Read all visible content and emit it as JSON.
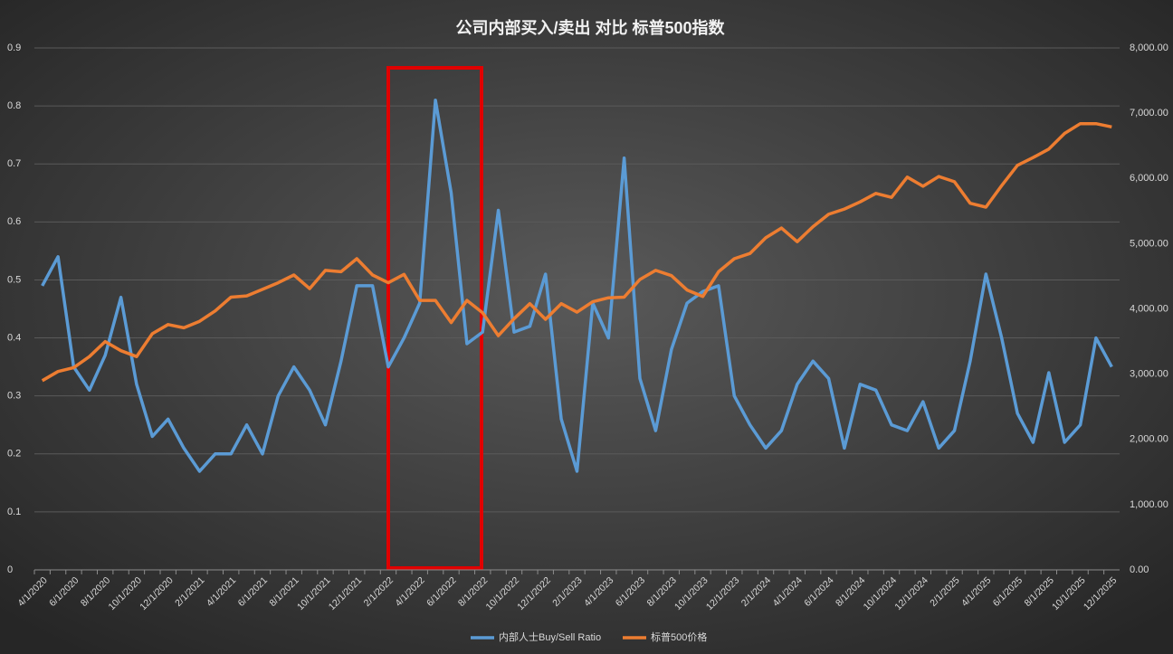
{
  "chart_data": {
    "type": "line",
    "title": "公司内部买入/卖出 对比 标普500指数",
    "categories": [
      "4/1/2020",
      null,
      "6/1/2020",
      null,
      "8/1/2020",
      null,
      "10/1/2020",
      null,
      "12/1/2020",
      null,
      "2/1/2021",
      null,
      "4/1/2021",
      null,
      "6/1/2021",
      null,
      "8/1/2021",
      null,
      "10/1/2021",
      null,
      "12/1/2021",
      null,
      "2/1/2022",
      null,
      "4/1/2022",
      null,
      "6/1/2022",
      null,
      "8/1/2022",
      null,
      "10/1/2022",
      null,
      "12/1/2022",
      null,
      "2/1/2023",
      null,
      "4/1/2023",
      null,
      "6/1/2023",
      null,
      "8/1/2023",
      null,
      "10/1/2023",
      null,
      "12/1/2023",
      null,
      "2/1/2024",
      null,
      "4/1/2024",
      null,
      "6/1/2024",
      null,
      "8/1/2024",
      null,
      "10/1/2024",
      null,
      "12/1/2024",
      null,
      "2/1/2025",
      null,
      "4/1/2025",
      null,
      "6/1/2025",
      null,
      "8/1/2025",
      null,
      "10/1/2025",
      null,
      "12/1/2025"
    ],
    "series": [
      {
        "name": "内部人士Buy/Sell Ratio",
        "color": "#5b9bd5",
        "values": [
          0.49,
          0.54,
          0.35,
          0.31,
          0.37,
          0.47,
          0.32,
          0.23,
          0.26,
          0.21,
          0.17,
          0.2,
          0.2,
          0.25,
          0.2,
          0.3,
          0.35,
          0.31,
          0.25,
          0.36,
          0.49,
          0.49,
          0.35,
          0.4,
          0.46,
          0.81,
          0.65,
          0.39,
          0.41,
          0.62,
          0.41,
          0.42,
          0.51,
          0.26,
          0.17,
          0.46,
          0.4,
          0.71,
          0.33,
          0.24,
          0.38,
          0.46,
          0.48,
          0.49,
          0.3,
          0.25,
          0.21,
          0.24,
          0.32,
          0.36,
          0.33,
          0.21,
          0.32,
          0.31,
          0.25,
          0.24,
          0.29,
          0.21,
          0.24,
          0.36,
          0.51,
          0.4,
          0.27,
          0.22,
          0.34,
          0.22,
          0.25,
          0.4,
          0.35
        ]
      },
      {
        "name": "标普500价格",
        "color": "#ed7d31",
        "axis": "y2",
        "values": [
          2900,
          3040,
          3100,
          3270,
          3500,
          3360,
          3270,
          3620,
          3760,
          3710,
          3810,
          3970,
          4180,
          4200,
          4300,
          4400,
          4520,
          4310,
          4590,
          4570,
          4770,
          4520,
          4400,
          4530,
          4130,
          4130,
          3790,
          4130,
          3940,
          3590,
          3850,
          4080,
          3840,
          4080,
          3950,
          4110,
          4170,
          4180,
          4450,
          4590,
          4510,
          4290,
          4190,
          4570,
          4770,
          4850,
          5090,
          5240,
          5030,
          5260,
          5450,
          5530,
          5640,
          5770,
          5710,
          6020,
          5880,
          6030,
          5950,
          5620,
          5560,
          5890,
          6200,
          6320,
          6450,
          6690,
          6840,
          6840,
          6790
        ]
      }
    ],
    "ylim": [
      0,
      0.9
    ],
    "yticks": [
      0,
      0.1,
      0.2,
      0.3,
      0.4,
      0.5,
      0.6,
      0.7,
      0.8,
      0.9
    ],
    "y2lim": [
      0,
      8000
    ],
    "y2ticks": [
      {
        "value": 0,
        "label": "0.00"
      },
      {
        "value": 1000,
        "label": "1,000.00"
      },
      {
        "value": 2000,
        "label": "2,000.00"
      },
      {
        "value": 3000,
        "label": "3,000.00"
      },
      {
        "value": 4000,
        "label": "4,000.00"
      },
      {
        "value": 5000,
        "label": "5,000.00"
      },
      {
        "value": 6000,
        "label": "6,000.00"
      },
      {
        "value": 7000,
        "label": "7,000.00"
      },
      {
        "value": 8000,
        "label": "8,000.00"
      }
    ],
    "grid": true,
    "legend": "bottom"
  }
}
